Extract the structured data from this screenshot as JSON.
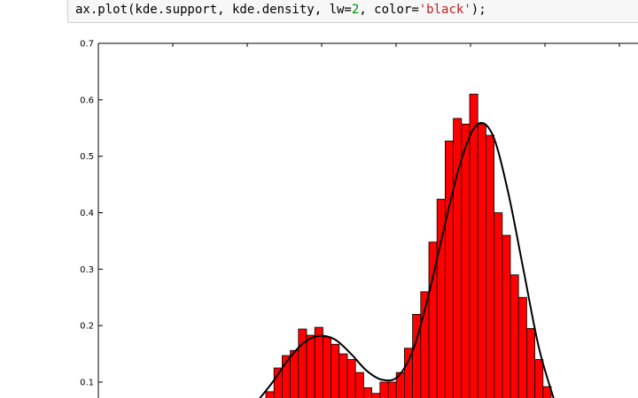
{
  "notebook": {
    "code_cell": {
      "segments": [
        {
          "text": "ax.plot(kde.support, kde.density, lw=",
          "kind": "plain"
        },
        {
          "text": "2",
          "kind": "num"
        },
        {
          "text": ", color=",
          "kind": "plain"
        },
        {
          "text": "'black'",
          "kind": "str"
        },
        {
          "text": ");",
          "kind": "plain"
        }
      ]
    }
  },
  "chart_data": {
    "type": "bar",
    "title": "",
    "xlabel": "",
    "ylabel": "",
    "ylim": [
      0.07,
      0.7
    ],
    "yticks": [
      0.1,
      0.2,
      0.3,
      0.4,
      0.5,
      0.6,
      0.7
    ],
    "ytick_labels": [
      "0.1",
      "0.2",
      "0.3",
      "0.4",
      "0.5",
      "0.6",
      "0.7"
    ],
    "bar_color": "#ff0000",
    "bar_edge_color": "#000000",
    "curve_color": "#000000",
    "histogram_densities": [
      0.083,
      0.125,
      0.147,
      0.156,
      0.194,
      0.183,
      0.197,
      0.18,
      0.167,
      0.15,
      0.14,
      0.117,
      0.09,
      0.08,
      0.1,
      0.1,
      0.117,
      0.16,
      0.22,
      0.26,
      0.348,
      0.424,
      0.527,
      0.567,
      0.557,
      0.61,
      0.557,
      0.537,
      0.4,
      0.36,
      0.29,
      0.25,
      0.195,
      0.14,
      0.092
    ],
    "kde_curve_values": [
      0.065,
      0.1,
      0.14,
      0.17,
      0.182,
      0.175,
      0.15,
      0.12,
      0.104,
      0.11,
      0.16,
      0.26,
      0.38,
      0.49,
      0.555,
      0.54,
      0.44,
      0.3,
      0.16,
      0.065
    ]
  }
}
